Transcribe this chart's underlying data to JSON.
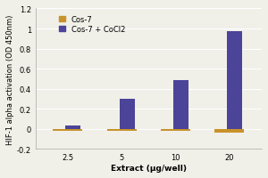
{
  "categories": [
    "2.5",
    "5",
    "10",
    "20"
  ],
  "cos7_values": [
    -0.015,
    -0.015,
    -0.02,
    -0.04
  ],
  "cos7_cocl2_values": [
    0.03,
    0.3,
    0.49,
    0.97
  ],
  "cos7_color": "#C8922A",
  "cos7_cocl2_color": "#4B4499",
  "xlabel": "Extract (μg/well)",
  "ylabel": "HIF-1 alpha activation (OD 450nm)",
  "ylim": [
    -0.2,
    1.2
  ],
  "yticks": [
    -0.2,
    0,
    0.2,
    0.4,
    0.6,
    0.8,
    1.0,
    1.2
  ],
  "ytick_labels": [
    "-0.2",
    "0",
    "0.2",
    "0.4",
    "0.6",
    "0.8",
    "1",
    "1.2"
  ],
  "legend_cos7": "Cos-7",
  "legend_cos7_cocl2": "Cos-7 + CoCl2",
  "cos7_bar_width": 0.55,
  "cocl2_bar_width": 0.28,
  "background_color": "#f0efe8",
  "grid_color": "#ffffff",
  "axis_fontsize": 6.5,
  "tick_fontsize": 6,
  "legend_fontsize": 6
}
